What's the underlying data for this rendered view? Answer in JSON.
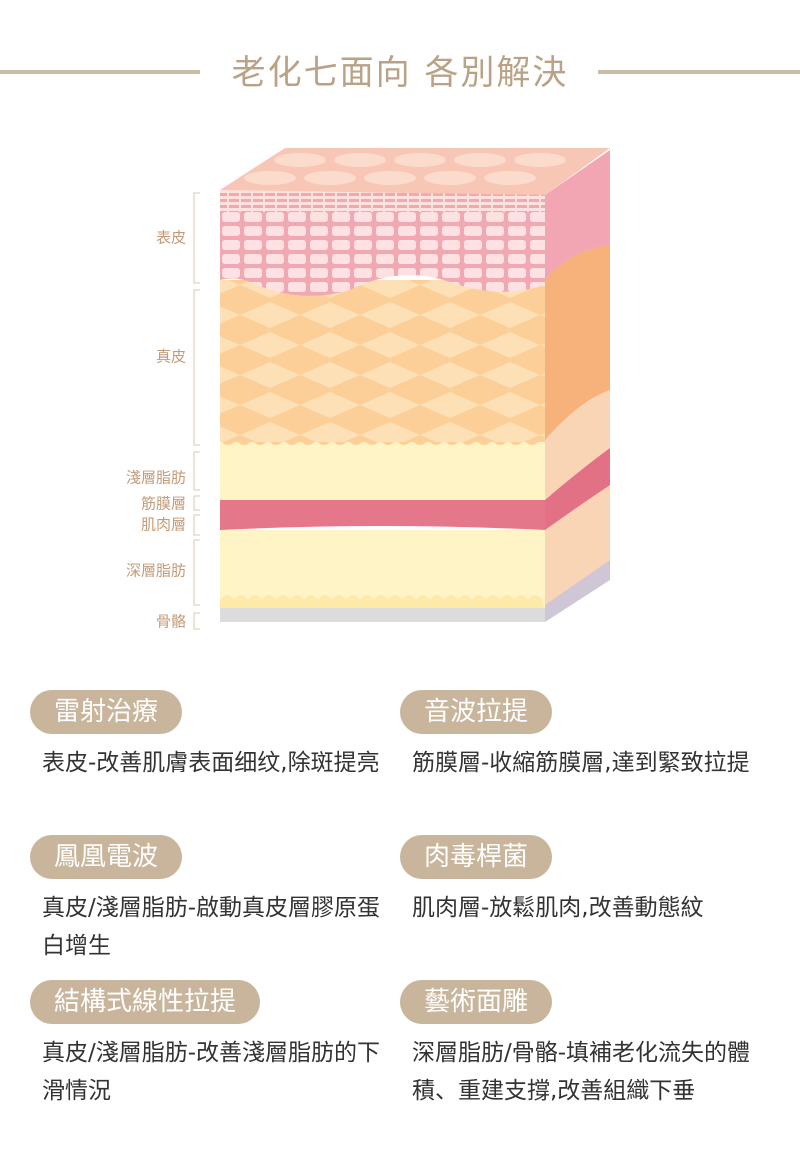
{
  "header": {
    "title": "老化七面向 各別解決"
  },
  "layers": [
    "表皮",
    "真皮",
    "淺層脂肪",
    "筋膜層",
    "肌肉層",
    "深層脂肪",
    "骨骼"
  ],
  "treatments": [
    {
      "name": "雷射治療",
      "description": "表皮-改善肌膚表面细纹,除斑提亮"
    },
    {
      "name": "音波拉提",
      "description": "筋膜層-收縮筋膜層,達到緊致拉提"
    },
    {
      "name": "鳳凰電波",
      "description": "真皮/淺層脂肪-啟動真皮層膠原蛋白增生"
    },
    {
      "name": "肉毒桿菌",
      "description": "肌肉層-放鬆肌肉,改善動態紋"
    },
    {
      "name": "結構式線性拉提",
      "description": "真皮/淺層脂肪-改善淺層脂肪的下滑情況"
    },
    {
      "name": "藝術面雕",
      "description": "深層脂肪/骨骼-填補老化流失的體積、重建支撐,改善組織下垂"
    }
  ]
}
